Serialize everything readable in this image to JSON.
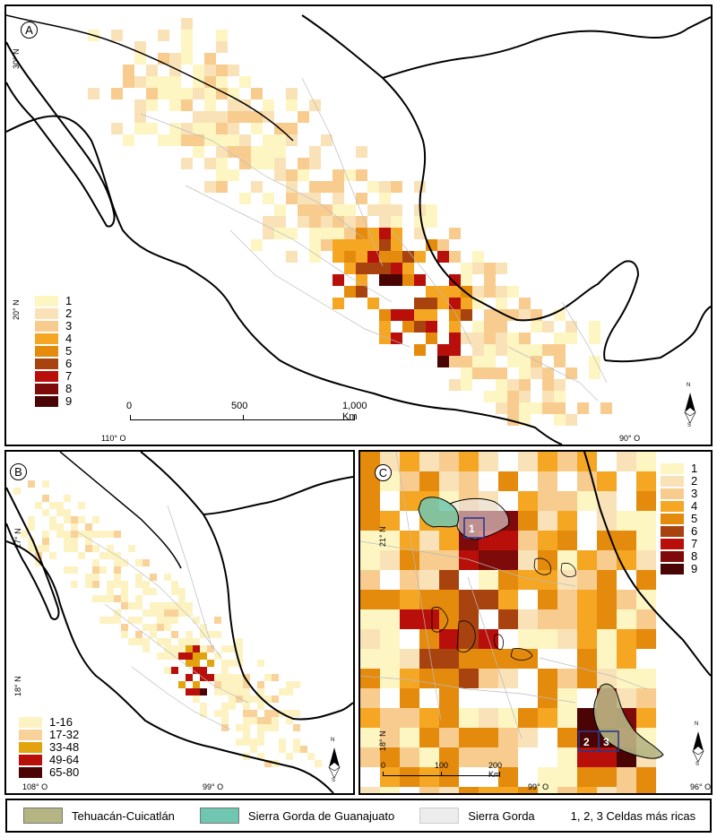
{
  "panels": {
    "a": {
      "letter": "A",
      "lat_labels": [
        "30° N",
        "20° N"
      ],
      "lon_labels": [
        "110° O",
        "90° O"
      ],
      "legend": [
        "1",
        "2",
        "3",
        "4",
        "5",
        "6",
        "7",
        "8",
        "9"
      ],
      "scale": {
        "ticks": [
          "0",
          "500",
          "1,000 Km"
        ]
      }
    },
    "b": {
      "letter": "B",
      "lat_labels": [
        "27° N",
        "18° N"
      ],
      "lon_labels": [
        "108° O",
        "99° O"
      ],
      "legend": [
        "1-16",
        "17-32",
        "33-48",
        "49-64",
        "65-80"
      ]
    },
    "c": {
      "letter": "C",
      "lat_labels": [
        "21° N",
        "18° N"
      ],
      "lon_labels": [
        "99° O",
        "96° O"
      ],
      "legend": [
        "1",
        "2",
        "3",
        "4",
        "5",
        "6",
        "7",
        "8",
        "9"
      ],
      "scale": {
        "ticks": [
          "0",
          "100",
          "200 Km"
        ]
      },
      "richest_cells": [
        "1",
        "2",
        "3"
      ]
    }
  },
  "compass": {
    "n": "N",
    "s": "S"
  },
  "colors": {
    "ramp9": [
      "#fdf6c2",
      "#fae2b8",
      "#f8cc8e",
      "#f5a623",
      "#e48a0c",
      "#a8430f",
      "#b80f0a",
      "#7e0a0a",
      "#4a0404"
    ],
    "ramp5": [
      "#fdf3c2",
      "#f9d29a",
      "#e3a30f",
      "#b80f0a",
      "#4a0404"
    ],
    "tehuacan": "#b5b583",
    "sierra_gorda_gto": "#6fc7b2",
    "sierra_gorda": "#ececec"
  },
  "bottom_legend": {
    "tehuacan": "Tehuacán-Cuicatlán",
    "sierra_gorda_gto": "Sierra Gorda de Guanajuato",
    "sierra_gorda": "Sierra Gorda",
    "richest": "1, 2, 3 Celdas más ricas"
  }
}
